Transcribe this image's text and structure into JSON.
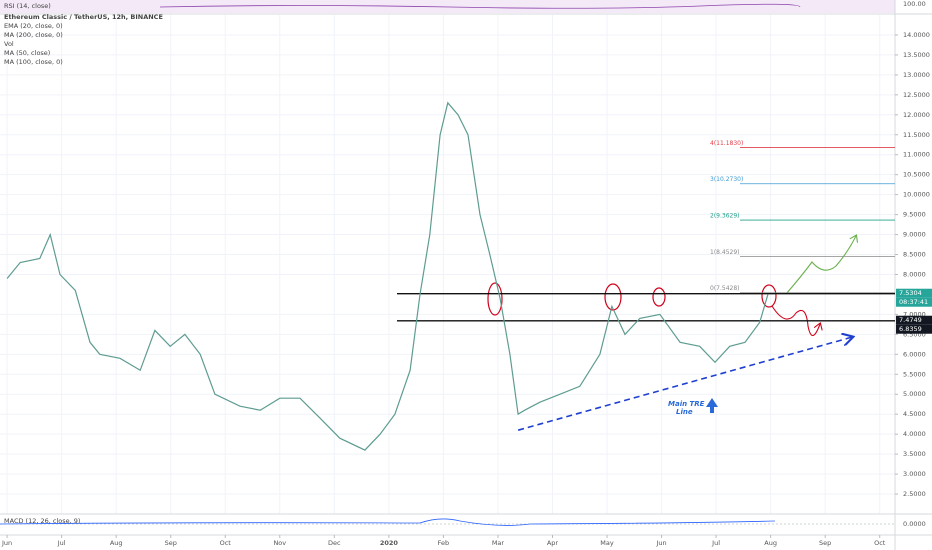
{
  "chart_data": {
    "type": "line",
    "title": "Ethereum Classic / TetherUS, 12h, BINANCE",
    "indicators": [
      "EMA (20, close, 0)",
      "MA (200, close, 0)",
      "Vol",
      "MA (50, close)",
      "MA (100, close, 0)"
    ],
    "rsi_label": "RSI (14, close)",
    "rsi_axis_label": "100.00",
    "macd_label": "MACD (12, 26, close, 9)",
    "macd_axis_label": "0.0000",
    "color": "#5e9c90",
    "x": [
      0,
      0.24,
      0.6,
      0.79,
      0.97,
      1.25,
      1.52,
      1.7,
      2.07,
      2.44,
      2.71,
      2.99,
      3.26,
      3.54,
      3.81,
      4.27,
      4.64,
      5.0,
      5.37,
      5.74,
      6.1,
      6.56,
      6.84,
      7.11,
      7.39,
      7.57,
      7.75,
      7.94,
      8.08,
      8.27,
      8.45,
      8.67,
      8.85,
      9.04,
      9.22,
      9.37,
      9.49,
      9.77,
      10.14,
      10.5,
      10.87,
      11.09,
      11.33,
      11.6,
      11.97,
      12.34,
      12.7,
      12.98,
      13.25,
      13.53,
      13.8,
      13.95
    ],
    "values": [
      7.9,
      8.3,
      8.4,
      9.0,
      8.0,
      7.6,
      6.3,
      6.0,
      5.9,
      5.6,
      6.6,
      6.2,
      6.5,
      6.0,
      5.0,
      4.7,
      4.6,
      4.9,
      4.9,
      4.4,
      3.9,
      3.6,
      4.0,
      4.5,
      5.6,
      7.5,
      9.0,
      11.5,
      12.3,
      12.0,
      11.5,
      9.5,
      8.5,
      7.4,
      6.0,
      4.5,
      4.6,
      4.8,
      5.0,
      5.2,
      6.0,
      7.2,
      6.5,
      6.9,
      7.0,
      6.3,
      6.2,
      5.8,
      6.2,
      6.3,
      6.8,
      7.5
    ],
    "xlim": [
      -0.13,
      16.28
    ],
    "ylim": [
      2.0,
      14.5
    ],
    "xticks": [
      {
        "value": 0,
        "label": "Jun"
      },
      {
        "value": 1,
        "label": "Jul"
      },
      {
        "value": 2,
        "label": "Aug"
      },
      {
        "value": 3,
        "label": "Sep"
      },
      {
        "value": 4,
        "label": "Oct"
      },
      {
        "value": 5,
        "label": "Nov"
      },
      {
        "value": 6,
        "label": "Dec"
      },
      {
        "value": 7,
        "label": "2020"
      },
      {
        "value": 8,
        "label": "Feb"
      },
      {
        "value": 9,
        "label": "Mar"
      },
      {
        "value": 10,
        "label": "Apr"
      },
      {
        "value": 11,
        "label": "May"
      },
      {
        "value": 12,
        "label": "Jun"
      },
      {
        "value": 13,
        "label": "Jul"
      },
      {
        "value": 14,
        "label": "Aug"
      },
      {
        "value": 15,
        "label": "Sep"
      },
      {
        "value": 16,
        "label": "Oct"
      }
    ],
    "yticks": [
      {
        "value": 2.5,
        "label": "2.5000"
      },
      {
        "value": 3,
        "label": "3.0000"
      },
      {
        "value": 3.5,
        "label": "3.5000"
      },
      {
        "value": 4,
        "label": "4.0000"
      },
      {
        "value": 4.5,
        "label": "4.5000"
      },
      {
        "value": 5,
        "label": "5.0000"
      },
      {
        "value": 5.5,
        "label": "5.5000"
      },
      {
        "value": 6,
        "label": "6.0000"
      },
      {
        "value": 6.5,
        "label": "6.5000"
      },
      {
        "value": 7,
        "label": "7.0000"
      },
      {
        "value": 8,
        "label": "8.0000"
      },
      {
        "value": 8.5,
        "label": "8.5000"
      },
      {
        "value": 9,
        "label": "9.0000"
      },
      {
        "value": 9.5,
        "label": "9.5000"
      },
      {
        "value": 10,
        "label": "10.0000"
      },
      {
        "value": 10.5,
        "label": "10.5000"
      },
      {
        "value": 11,
        "label": "11.0000"
      },
      {
        "value": 11.5,
        "label": "11.5000"
      },
      {
        "value": 12,
        "label": "12.0000"
      },
      {
        "value": 12.5,
        "label": "12.5000"
      },
      {
        "value": 13,
        "label": "13.0000"
      },
      {
        "value": 13.5,
        "label": "13.5000"
      },
      {
        "value": 14,
        "label": "14.0000"
      }
    ],
    "grid": true,
    "fib_levels": [
      {
        "value": 11.183,
        "label": "4(11.1830)",
        "color": "#e0424b"
      },
      {
        "value": 10.273,
        "label": "3(10.2730)",
        "color": "#3d9ad1"
      },
      {
        "value": 9.3629,
        "label": "2(9.3629)",
        "color": "#22a08a"
      },
      {
        "value": 8.4529,
        "label": "1(8.4529)",
        "color": "#888888"
      },
      {
        "value": 7.5428,
        "label": "0(7.5428)",
        "color": "#888888"
      }
    ],
    "horizontal_lines": [
      7.52,
      6.84
    ],
    "price_tags": [
      {
        "value": 7.5304,
        "label": "7.5304",
        "color": "#26a69a"
      },
      {
        "value": 7.4749,
        "label": "7.4749",
        "color": "#131722"
      },
      {
        "value": 6.8359,
        "label": "6.8359",
        "color": "#131722"
      }
    ],
    "countdown": "08:37:41",
    "trend_line": {
      "x": [
        9.37,
        15.49
      ],
      "values": [
        4.1,
        6.43
      ],
      "color": "#1f3fd1"
    },
    "annotation": [
      "Main TRE",
      "Line"
    ]
  }
}
